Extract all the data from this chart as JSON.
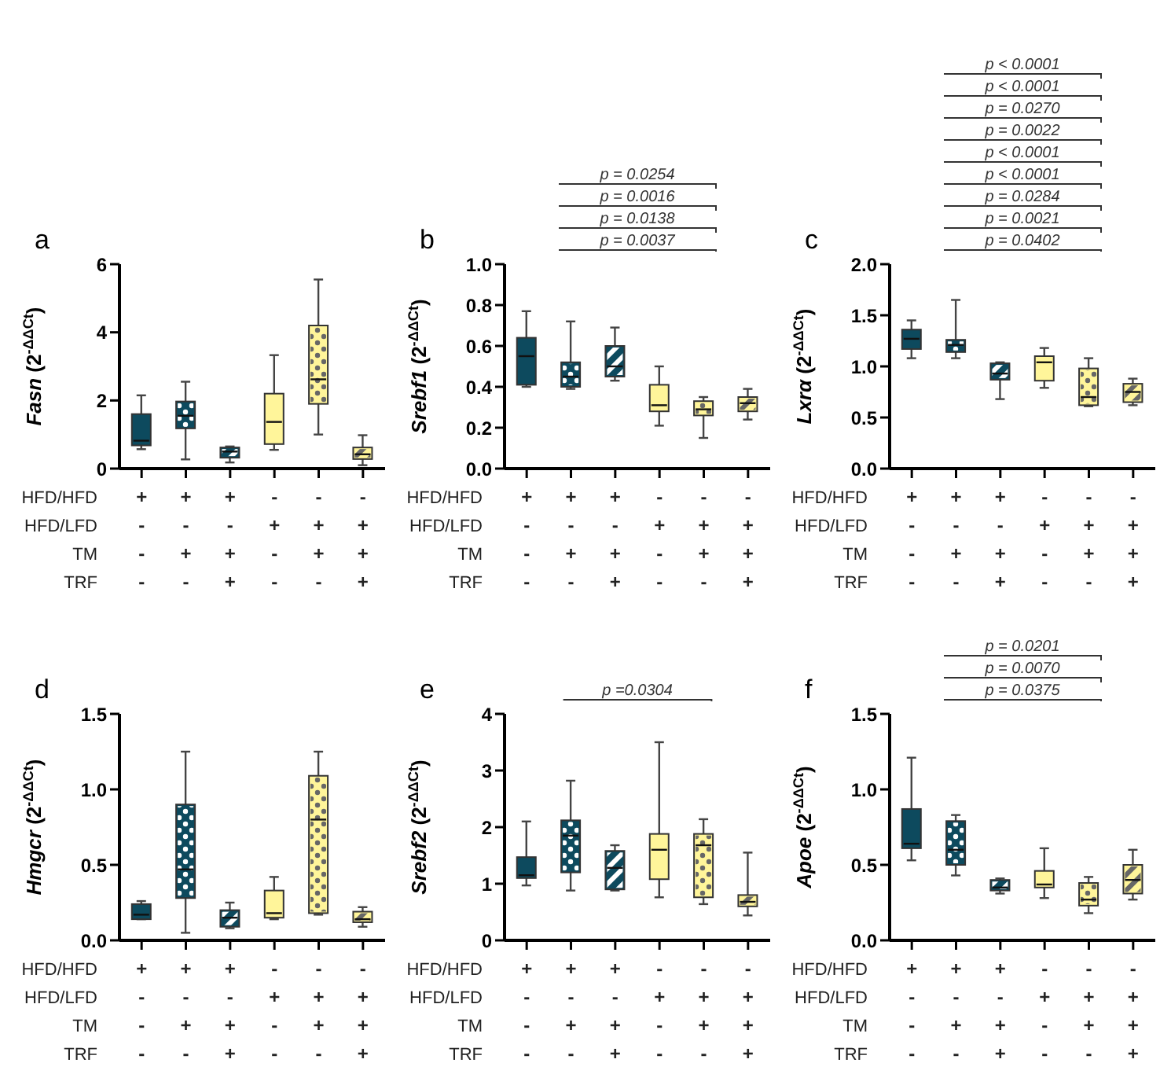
{
  "chart_data": [
    {
      "type": "box",
      "title": "a",
      "ylabel": "Fasn (2$^{-ΔΔCt}$)",
      "xlabel": "HFD/HFD\nHFD/LFD\nTM\nTRF",
      "categories": [
        "+\n-\n-\n-",
        "+\n-\n+\n-",
        "+\n-\n+\n+",
        "-\n+\n-\n-",
        "-\n+\n+\n-",
        "-\n+\n+\n+"
      ],
      "colors": [
        "#0d4a5e",
        "#0d4a5e",
        "#0d4a5e",
        "#fff59a",
        "#fff59a",
        "#fff59a"
      ],
      "ylim": [
        0,
        6
      ],
      "yticks": [
        0,
        2,
        4,
        6
      ],
      "boxes": [
        {
          "low": 0.57,
          "q1": 0.68,
          "median": 0.82,
          "q3": 1.6,
          "high": 2.15
        },
        {
          "low": 0.27,
          "q1": 1.18,
          "median": 1.55,
          "q3": 1.97,
          "high": 2.55
        },
        {
          "low": 0.18,
          "q1": 0.32,
          "median": 0.5,
          "q3": 0.62,
          "high": 0.65
        },
        {
          "low": 0.55,
          "q1": 0.72,
          "median": 1.37,
          "q3": 2.2,
          "high": 3.33
        },
        {
          "low": 1.0,
          "q1": 1.9,
          "median": 2.62,
          "q3": 4.2,
          "high": 5.55
        },
        {
          "low": 0.1,
          "q1": 0.28,
          "median": 0.42,
          "q3": 0.62,
          "high": 0.98
        }
      ]
    },
    {
      "type": "box",
      "title": "b",
      "ylabel": "Srebf1 (2$^{-ΔΔCt}$)",
      "xlabel": "HFD/HFD\nHFD/LFD\nTM\nTRF",
      "categories": [
        "+\n-\n-\n-",
        "+\n-\n+\n-",
        "+\n-\n+\n+",
        "-\n+\n-\n-",
        "-\n+\n+\n-",
        "-\n+\n+\n+"
      ],
      "colors": [
        "#0d4a5e",
        "#0d4a5e",
        "#0d4a5e",
        "#fff59a",
        "#fff59a",
        "#fff59a"
      ],
      "ylim": [
        0,
        1
      ],
      "yticks": [
        {
          "value": 0,
          "label": "0.0"
        },
        {
          "value": 0.2,
          "label": "0.2"
        },
        {
          "value": 0.4,
          "label": "0.4"
        },
        {
          "value": 0.6,
          "label": "0.6"
        },
        {
          "value": 0.8,
          "label": "0.8"
        },
        {
          "value": 1,
          "label": "1.0"
        }
      ],
      "annotations": [
        "p = 0.0254",
        "p = 0.0016",
        "p = 0.0138",
        "p = 0.0037"
      ],
      "boxes": [
        {
          "low": 0.4,
          "q1": 0.41,
          "median": 0.55,
          "q3": 0.64,
          "high": 0.77
        },
        {
          "low": 0.39,
          "q1": 0.4,
          "median": 0.45,
          "q3": 0.52,
          "high": 0.72
        },
        {
          "low": 0.43,
          "q1": 0.45,
          "median": 0.5,
          "q3": 0.6,
          "high": 0.69
        },
        {
          "low": 0.21,
          "q1": 0.28,
          "median": 0.31,
          "q3": 0.41,
          "high": 0.5
        },
        {
          "low": 0.15,
          "q1": 0.26,
          "median": 0.29,
          "q3": 0.33,
          "high": 0.35
        },
        {
          "low": 0.24,
          "q1": 0.28,
          "median": 0.32,
          "q3": 0.35,
          "high": 0.39
        }
      ]
    },
    {
      "type": "box",
      "title": "c",
      "ylabel": "Lxrα (2$^{-ΔΔCt}$)",
      "xlabel": "HFD/HFD\nHFD/LFD\nTM\nTRF",
      "categories": [
        "+\n-\n-\n-",
        "+\n-\n+\n-",
        "+\n-\n+\n+",
        "-\n+\n-\n-",
        "-\n+\n+\n-",
        "-\n+\n+\n+"
      ],
      "colors": [
        "#0d4a5e",
        "#0d4a5e",
        "#0d4a5e",
        "#fff59a",
        "#fff59a",
        "#fff59a"
      ],
      "ylim": [
        0,
        2
      ],
      "yticks": [
        {
          "value": 0,
          "label": "0.0"
        },
        {
          "value": 0.5,
          "label": "0.5"
        },
        {
          "value": 1,
          "label": "1.0"
        },
        {
          "value": 1.5,
          "label": "1.5"
        },
        {
          "value": 2,
          "label": "2.0"
        }
      ],
      "annotations": [
        "p < 0.0001",
        "p < 0.0001",
        "p = 0.0270",
        "p = 0.0022",
        "p < 0.0001",
        "p < 0.0001",
        "p = 0.0284",
        "p = 0.0021",
        "p = 0.0402"
      ],
      "boxes": [
        {
          "low": 1.08,
          "q1": 1.17,
          "median": 1.27,
          "q3": 1.36,
          "high": 1.45
        },
        {
          "low": 1.08,
          "q1": 1.14,
          "median": 1.21,
          "q3": 1.26,
          "high": 1.65
        },
        {
          "low": 0.68,
          "q1": 0.87,
          "median": 0.93,
          "q3": 1.03,
          "high": 1.04
        },
        {
          "low": 0.79,
          "q1": 0.86,
          "median": 1.04,
          "q3": 1.1,
          "high": 1.18
        },
        {
          "low": 0.61,
          "q1": 0.62,
          "median": 0.7,
          "q3": 0.98,
          "high": 1.08
        },
        {
          "low": 0.62,
          "q1": 0.65,
          "median": 0.75,
          "q3": 0.83,
          "high": 0.88
        }
      ]
    },
    {
      "type": "box",
      "title": "d",
      "ylabel": "Hmgcr (2$^{-ΔΔCt}$)",
      "xlabel": "HFD/HFD\nHFD/LFD\nTM\nTRF",
      "categories": [
        "+\n-\n-\n-",
        "+\n-\n+\n-",
        "+\n-\n+\n+",
        "-\n+\n-\n-",
        "-\n+\n+\n-",
        "-\n+\n+\n+"
      ],
      "colors": [
        "#0d4a5e",
        "#0d4a5e",
        "#0d4a5e",
        "#fff59a",
        "#fff59a",
        "#fff59a"
      ],
      "ylim": [
        0,
        1.5
      ],
      "yticks": [
        {
          "value": 0,
          "label": "0.0"
        },
        {
          "value": 0.5,
          "label": "0.5"
        },
        {
          "value": 1,
          "label": "1.0"
        },
        {
          "value": 1.5,
          "label": "1.5"
        }
      ],
      "boxes": [
        {
          "low": 0.14,
          "q1": 0.14,
          "median": 0.17,
          "q3": 0.24,
          "high": 0.26
        },
        {
          "low": 0.05,
          "q1": 0.28,
          "median": 0.47,
          "q3": 0.9,
          "high": 1.25
        },
        {
          "low": 0.08,
          "q1": 0.09,
          "median": 0.15,
          "q3": 0.2,
          "high": 0.25
        },
        {
          "low": 0.14,
          "q1": 0.15,
          "median": 0.18,
          "q3": 0.33,
          "high": 0.42
        },
        {
          "low": 0.17,
          "q1": 0.18,
          "median": 0.8,
          "q3": 1.09,
          "high": 1.25
        },
        {
          "low": 0.09,
          "q1": 0.12,
          "median": 0.14,
          "q3": 0.19,
          "high": 0.22
        }
      ]
    },
    {
      "type": "box",
      "title": "e",
      "ylabel": "Srebf2 (2$^{-ΔΔCt}$)",
      "xlabel": "HFD/HFD\nHFD/LFD\nTM\nTRF",
      "categories": [
        "+\n-\n-\n-",
        "+\n-\n+\n-",
        "+\n-\n+\n+",
        "-\n+\n-\n-",
        "-\n+\n+\n-",
        "-\n+\n+\n+"
      ],
      "colors": [
        "#0d4a5e",
        "#0d4a5e",
        "#0d4a5e",
        "#fff59a",
        "#fff59a",
        "#fff59a"
      ],
      "ylim": [
        0,
        4
      ],
      "yticks": [
        0,
        1,
        2,
        3,
        4
      ],
      "annotations": [
        "p =0.0304"
      ],
      "boxes": [
        {
          "low": 0.97,
          "q1": 1.1,
          "median": 1.15,
          "q3": 1.47,
          "high": 2.1
        },
        {
          "low": 0.88,
          "q1": 1.2,
          "median": 1.85,
          "q3": 2.12,
          "high": 2.82
        },
        {
          "low": 0.88,
          "q1": 0.9,
          "median": 1.28,
          "q3": 1.58,
          "high": 1.68
        },
        {
          "low": 0.76,
          "q1": 1.08,
          "median": 1.6,
          "q3": 1.88,
          "high": 3.5
        },
        {
          "low": 0.64,
          "q1": 0.76,
          "median": 1.68,
          "q3": 1.88,
          "high": 2.14
        },
        {
          "low": 0.44,
          "q1": 0.6,
          "median": 0.68,
          "q3": 0.8,
          "high": 1.55
        }
      ]
    },
    {
      "type": "box",
      "title": "f",
      "ylabel": "Apoe (2$^{-ΔΔCt}$)",
      "xlabel": "HFD/HFD\nHFD/LFD\nTM\nTRF",
      "categories": [
        "+\n-\n-\n-",
        "+\n-\n+\n-",
        "+\n-\n+\n+",
        "-\n+\n-\n-",
        "-\n+\n+\n-",
        "-\n+\n+\n+"
      ],
      "colors": [
        "#0d4a5e",
        "#0d4a5e",
        "#0d4a5e",
        "#fff59a",
        "#fff59a",
        "#fff59a"
      ],
      "ylim": [
        0,
        1.5
      ],
      "yticks": [
        {
          "value": 0,
          "label": "0.0"
        },
        {
          "value": 0.5,
          "label": "0.5"
        },
        {
          "value": 1,
          "label": "1.0"
        },
        {
          "value": 1.5,
          "label": "1.5"
        }
      ],
      "annotations": [
        "p = 0.0201",
        "p = 0.0070",
        "p = 0.0375"
      ],
      "boxes": [
        {
          "low": 0.53,
          "q1": 0.61,
          "median": 0.64,
          "q3": 0.87,
          "high": 1.21
        },
        {
          "low": 0.43,
          "q1": 0.5,
          "median": 0.6,
          "q3": 0.79,
          "high": 0.83
        },
        {
          "low": 0.31,
          "q1": 0.33,
          "median": 0.35,
          "q3": 0.4,
          "high": 0.41
        },
        {
          "low": 0.28,
          "q1": 0.35,
          "median": 0.37,
          "q3": 0.46,
          "high": 0.61
        },
        {
          "low": 0.18,
          "q1": 0.23,
          "median": 0.27,
          "q3": 0.38,
          "high": 0.42
        },
        {
          "low": 0.27,
          "q1": 0.31,
          "median": 0.4,
          "q3": 0.5,
          "high": 0.6
        }
      ]
    }
  ]
}
